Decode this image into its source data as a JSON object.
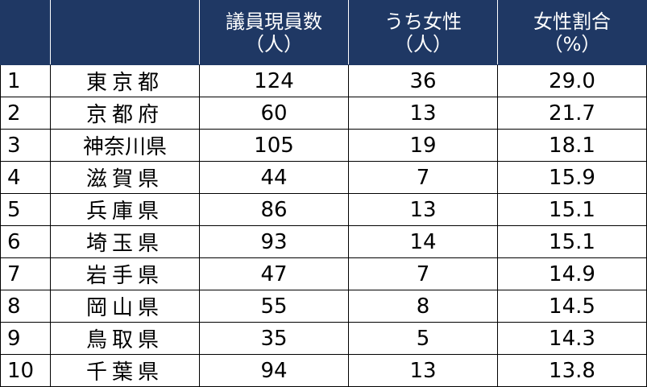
{
  "columns": [
    {
      "line1": "",
      "line2": ""
    },
    {
      "line1": "",
      "line2": ""
    },
    {
      "line1": "議員現員数",
      "line2": "（人）"
    },
    {
      "line1": "うち女性",
      "line2": "（人）"
    },
    {
      "line1": "女性割合",
      "line2": "（%）"
    }
  ],
  "header_color": "#1f3864",
  "rows": [
    {
      "rank": "1",
      "prefecture": "東京都",
      "members": "124",
      "women": "36",
      "ratio": "29.0"
    },
    {
      "rank": "2",
      "prefecture": "京都府",
      "members": "60",
      "women": "13",
      "ratio": "21.7"
    },
    {
      "rank": "3",
      "prefecture": "神奈川県",
      "members": "105",
      "women": "19",
      "ratio": "18.1"
    },
    {
      "rank": "4",
      "prefecture": "滋賀県",
      "members": "44",
      "women": "7",
      "ratio": "15.9"
    },
    {
      "rank": "5",
      "prefecture": "兵庫県",
      "members": "86",
      "women": "13",
      "ratio": "15.1"
    },
    {
      "rank": "6",
      "prefecture": "埼玉県",
      "members": "93",
      "women": "14",
      "ratio": "15.1"
    },
    {
      "rank": "7",
      "prefecture": "岩手県",
      "members": "47",
      "women": "7",
      "ratio": "14.9"
    },
    {
      "rank": "8",
      "prefecture": "岡山県",
      "members": "55",
      "women": "8",
      "ratio": "14.5"
    },
    {
      "rank": "9",
      "prefecture": "鳥取県",
      "members": "35",
      "women": "5",
      "ratio": "14.3"
    },
    {
      "rank": "10",
      "prefecture": "千葉県",
      "members": "94",
      "women": "13",
      "ratio": "13.8"
    }
  ]
}
